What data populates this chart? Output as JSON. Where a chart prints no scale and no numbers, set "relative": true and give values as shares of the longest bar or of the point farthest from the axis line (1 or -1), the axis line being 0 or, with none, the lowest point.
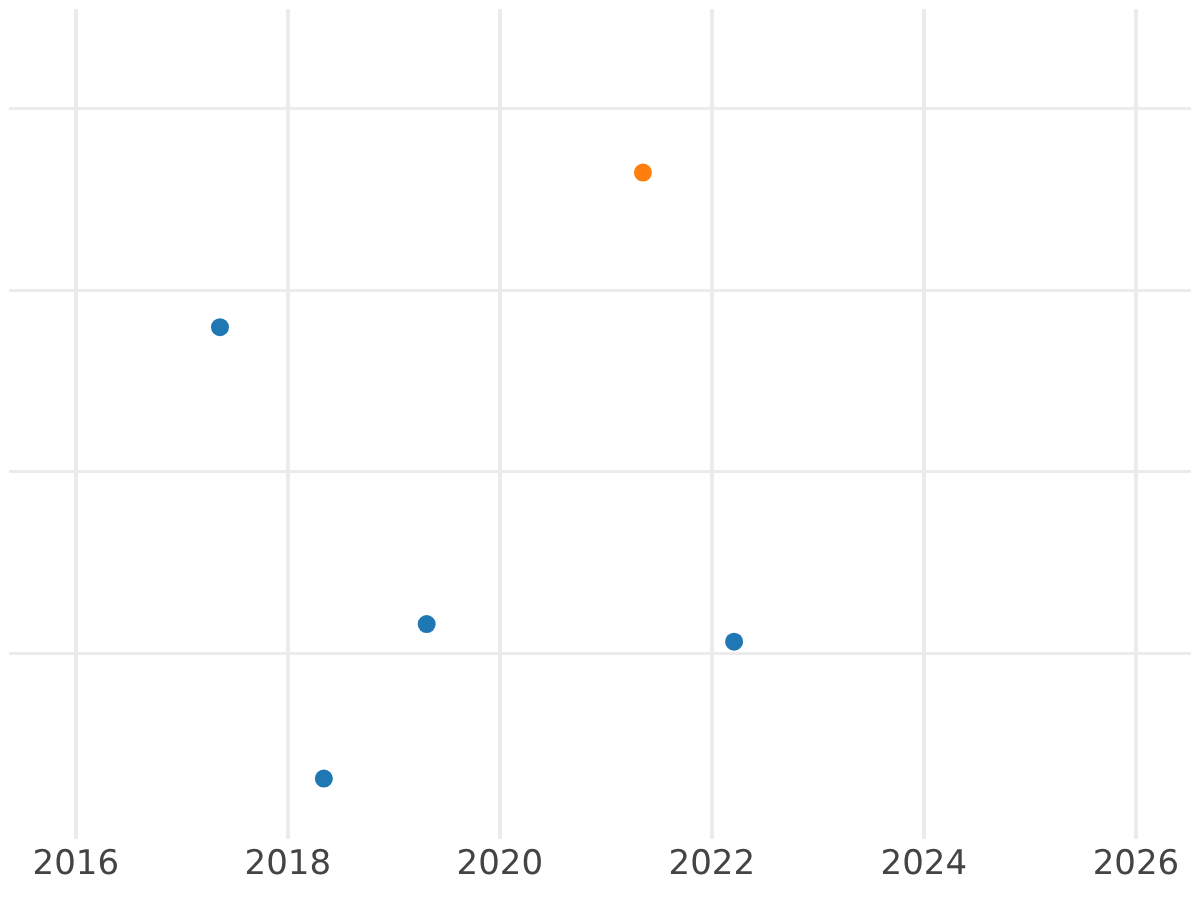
{
  "chart_data": {
    "type": "scatter",
    "relative": true,
    "xlim": [
      2015.37,
      2026.52
    ],
    "xticks": [
      2016,
      2018,
      2020,
      2022,
      2024,
      2026
    ],
    "grid": true,
    "marker": "circle",
    "tick_labels": "x",
    "series": [
      {
        "color": "#1f77b4",
        "x": [
          2017.36,
          2018.34,
          2019.31,
          2022.21
        ],
        "values": [
          0.745,
          0,
          0.255,
          0.226
        ]
      },
      {
        "color": "#ff7f0e",
        "x": [
          2021.35
        ],
        "values": [
          1
        ]
      }
    ]
  }
}
